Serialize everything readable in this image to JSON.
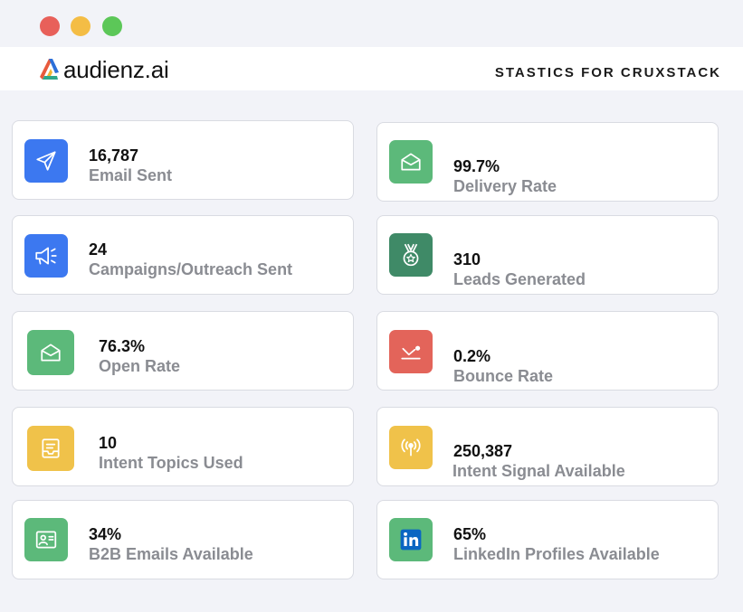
{
  "window": {
    "controls": [
      "close",
      "minimize",
      "maximize"
    ]
  },
  "header": {
    "logo_text": "audienz.ai",
    "title": "STASTICS FOR CRUXSTACK"
  },
  "colors": {
    "blue": "#3c78f0",
    "green": "#5cb97a",
    "dark_green": "#3f8a67",
    "red": "#e3645a",
    "yellow": "#f0c24a"
  },
  "stats": [
    {
      "value": "16,787",
      "label": "Email Sent",
      "icon": "send-icon",
      "color": "#3c78f0"
    },
    {
      "value": "99.7%",
      "label": "Delivery Rate",
      "icon": "open-envelope-icon",
      "color": "#5cb97a"
    },
    {
      "value": "24",
      "label": "Campaigns/Outreach Sent",
      "icon": "megaphone-icon",
      "color": "#3c78f0"
    },
    {
      "value": "310",
      "label": "Leads Generated",
      "icon": "medal-icon",
      "color": "#3f8a67"
    },
    {
      "value": "76.3%",
      "label": "Open Rate",
      "icon": "open-envelope-icon",
      "color": "#5cb97a"
    },
    {
      "value": "0.2%",
      "label": "Bounce Rate",
      "icon": "bounce-icon",
      "color": "#e3645a"
    },
    {
      "value": "10",
      "label": "Intent Topics Used",
      "icon": "inbox-icon",
      "color": "#f0c24a"
    },
    {
      "value": "250,387",
      "label": "Intent Signal Available",
      "icon": "signal-icon",
      "color": "#f0c24a"
    },
    {
      "value": "34%",
      "label": "B2B Emails Available",
      "icon": "contact-card-icon",
      "color": "#5cb97a"
    },
    {
      "value": "65%",
      "label": "LinkedIn Profiles Available",
      "icon": "linkedin-icon",
      "color": "#5cb97a"
    }
  ]
}
